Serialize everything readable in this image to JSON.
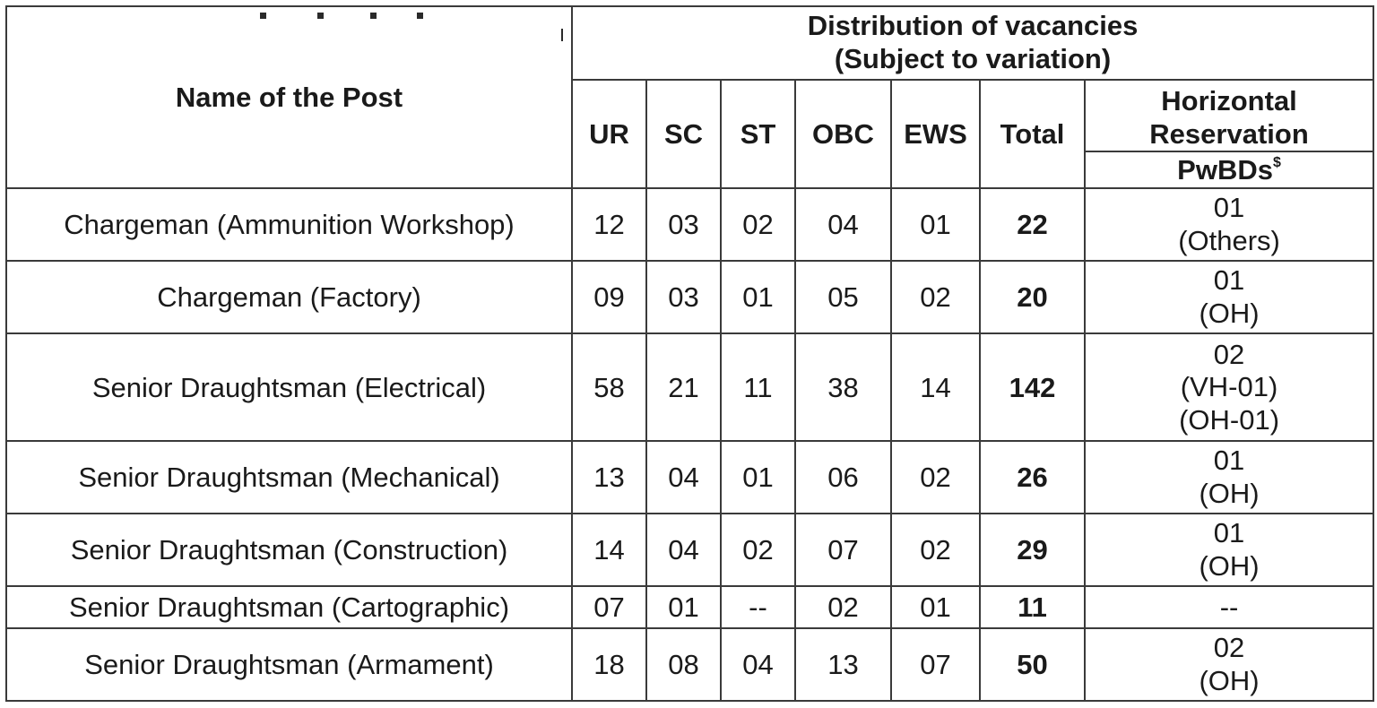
{
  "header": {
    "name_of_post": "Name of the Post",
    "distribution_line1": "Distribution of vacancies",
    "distribution_line2": "(Subject to variation)",
    "columns": {
      "ur": "UR",
      "sc": "SC",
      "st": "ST",
      "obc": "OBC",
      "ews": "EWS",
      "total": "Total"
    },
    "horizontal_reservation": "Horizontal Reservation",
    "pwbds": "PwBDs",
    "pwbds_marker": "$"
  },
  "rows": [
    {
      "post": "Chargeman (Ammunition Workshop)",
      "ur": "12",
      "sc": "03",
      "st": "02",
      "obc": "04",
      "ews": "01",
      "total": "22",
      "pwbd": [
        "01",
        "(Others)"
      ]
    },
    {
      "post": "Chargeman (Factory)",
      "ur": "09",
      "sc": "03",
      "st": "01",
      "obc": "05",
      "ews": "02",
      "total": "20",
      "pwbd": [
        "01",
        "(OH)"
      ]
    },
    {
      "post": "Senior Draughtsman (Electrical)",
      "ur": "58",
      "sc": "21",
      "st": "11",
      "obc": "38",
      "ews": "14",
      "total": "142",
      "pwbd": [
        "02",
        "(VH-01)",
        "(OH-01)"
      ]
    },
    {
      "post": "Senior Draughtsman (Mechanical)",
      "ur": "13",
      "sc": "04",
      "st": "01",
      "obc": "06",
      "ews": "02",
      "total": "26",
      "pwbd": [
        "01",
        "(OH)"
      ]
    },
    {
      "post": "Senior Draughtsman (Construction)",
      "ur": "14",
      "sc": "04",
      "st": "02",
      "obc": "07",
      "ews": "02",
      "total": "29",
      "pwbd": [
        "01",
        "(OH)"
      ]
    },
    {
      "post": "Senior Draughtsman (Cartographic)",
      "ur": "07",
      "sc": "01",
      "st": "--",
      "obc": "02",
      "ews": "01",
      "total": "11",
      "pwbd": [
        "--"
      ]
    },
    {
      "post": "Senior Draughtsman (Armament)",
      "ur": "18",
      "sc": "08",
      "st": "04",
      "obc": "13",
      "ews": "07",
      "total": "50",
      "pwbd": [
        "02",
        "(OH)"
      ]
    }
  ]
}
